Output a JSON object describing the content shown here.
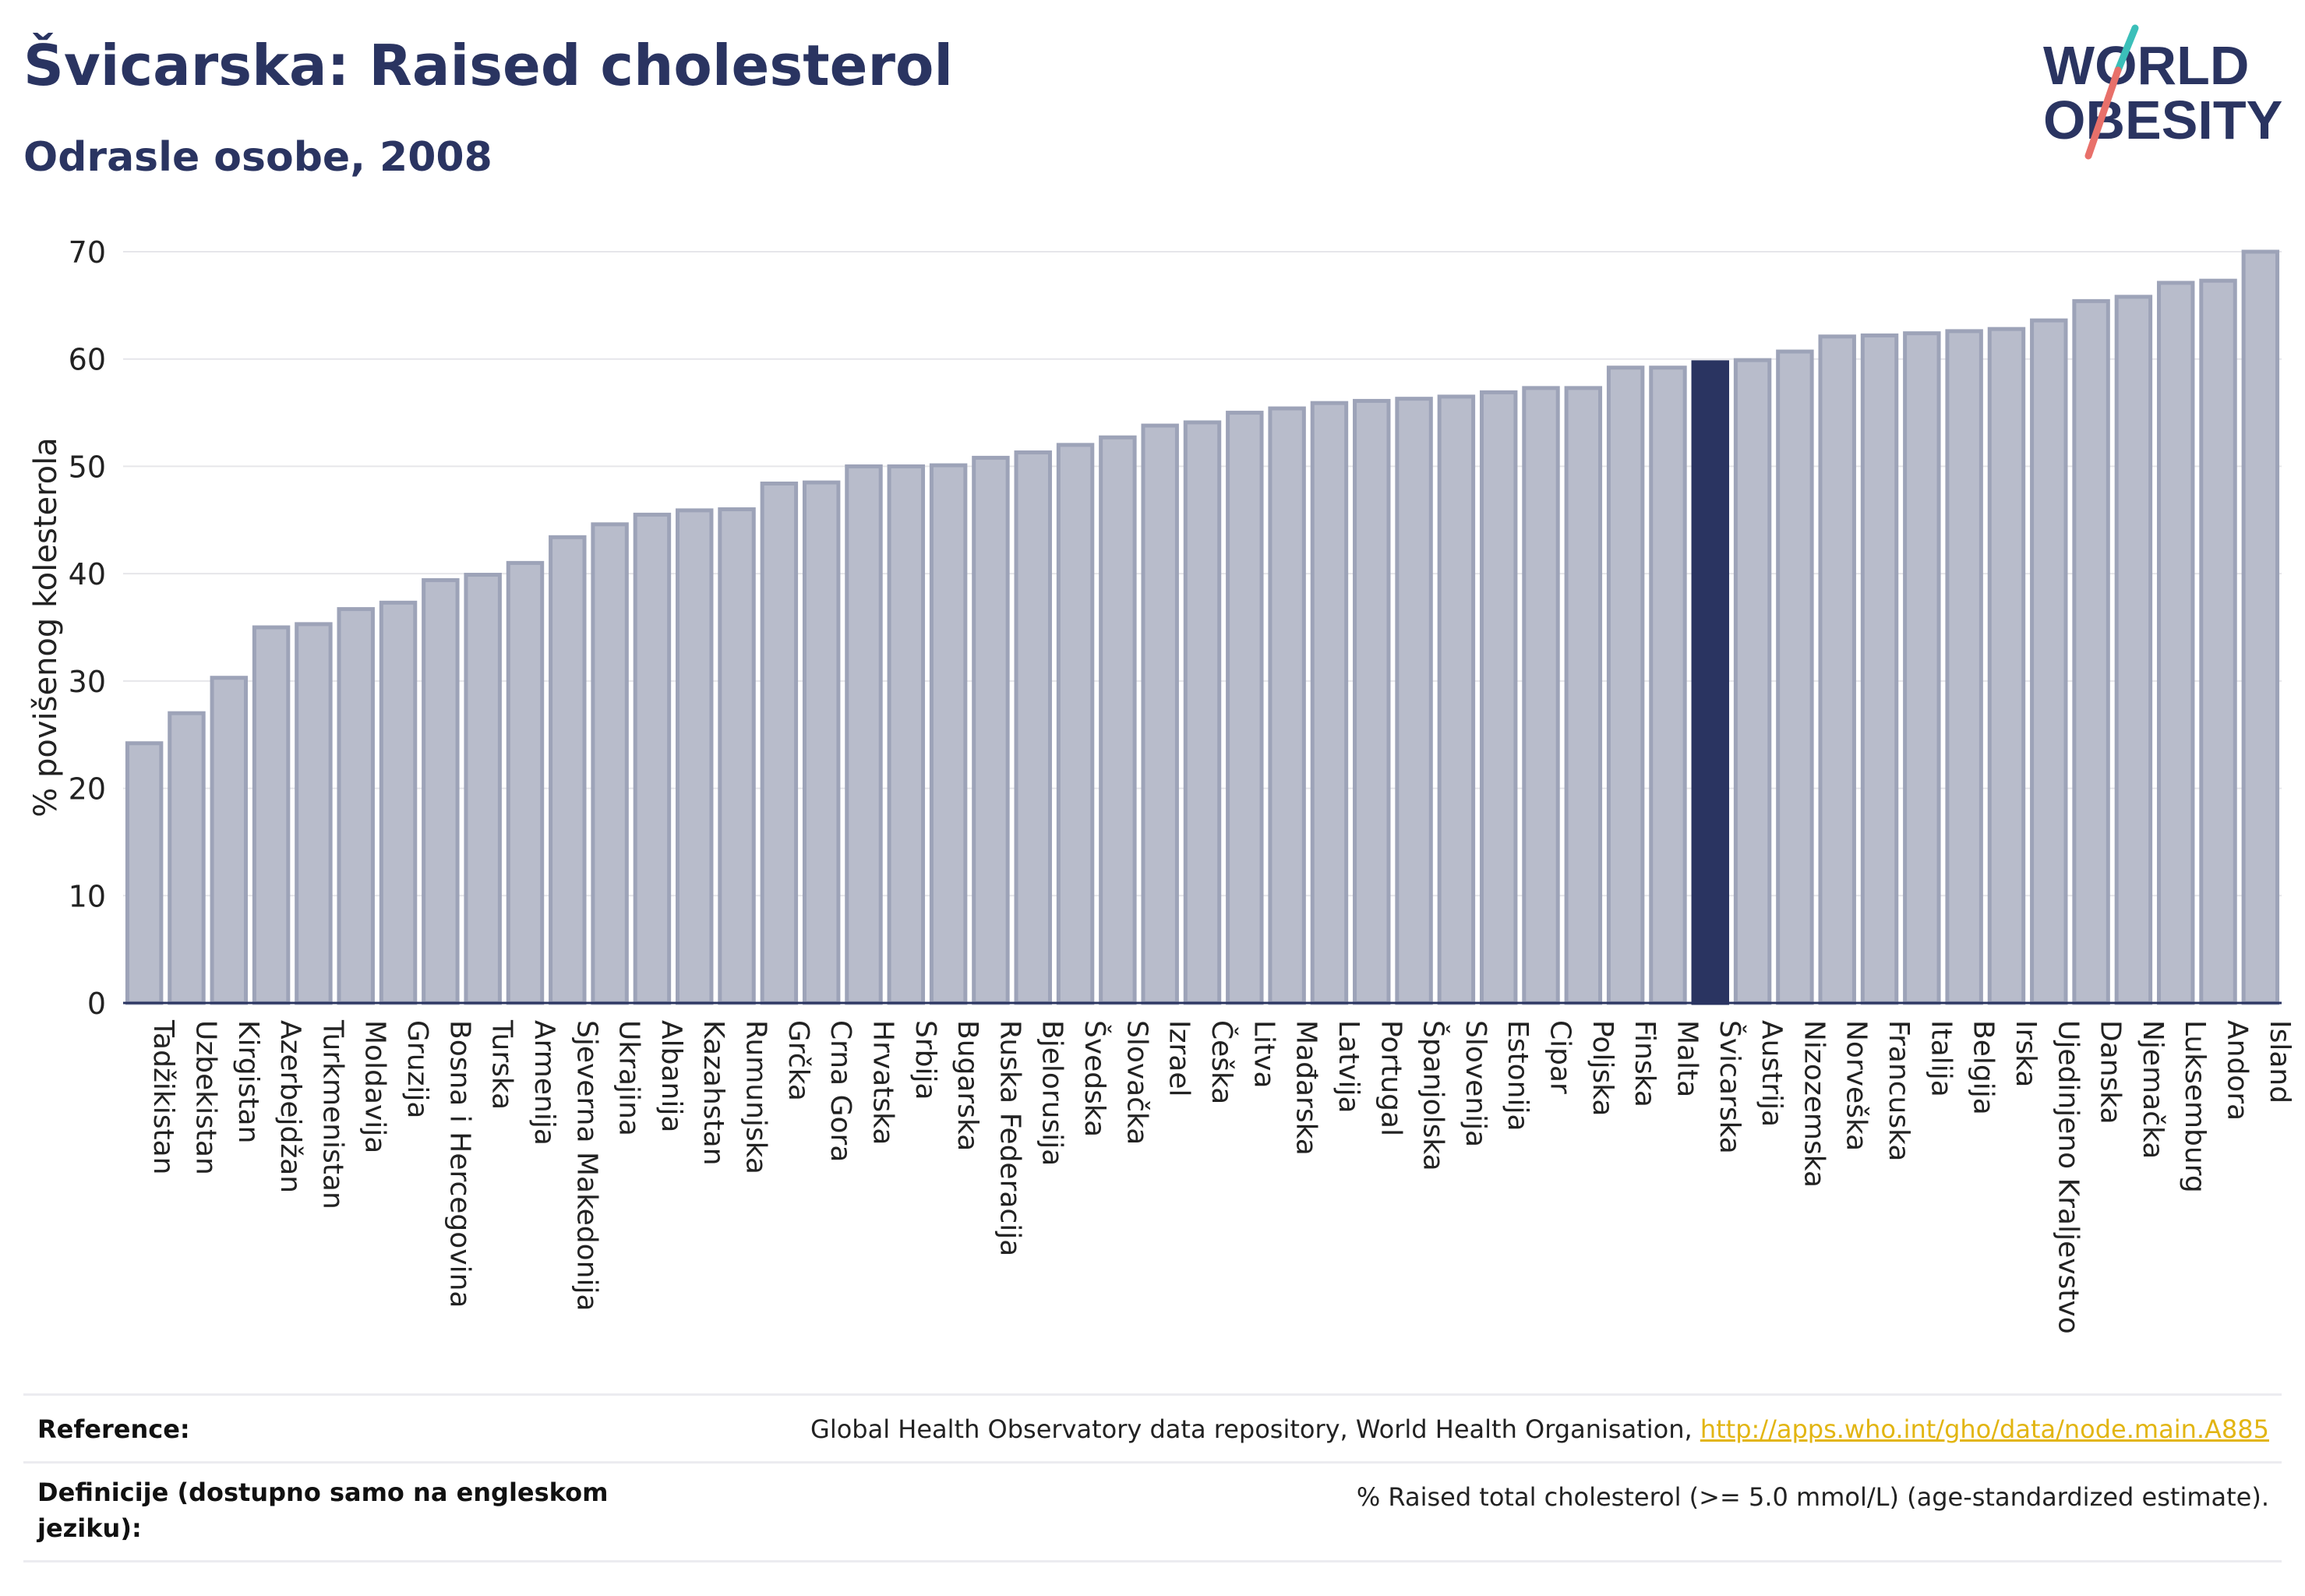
{
  "header": {
    "title": "Švicarska: Raised cholesterol",
    "subtitle": "Odrasle osobe, 2008"
  },
  "logo": {
    "line1": "WORLD",
    "line2": "OBESITY",
    "colors": {
      "text": "#2a3461",
      "slash_teal": "#3bbfb9",
      "slash_red": "#e8706a"
    }
  },
  "colors": {
    "bar": "#b8bccb",
    "bar_border": "#9da3b8",
    "highlight": "#2a3461",
    "grid": "#e6e6ea",
    "axis": "#2a3461"
  },
  "chart_data": {
    "type": "bar",
    "title": "Švicarska: Raised cholesterol",
    "subtitle": "Odrasle osobe, 2008",
    "xlabel": "",
    "ylabel": "% povišenog kolesterola",
    "ylim": [
      0,
      70
    ],
    "yticks": [
      0,
      10,
      20,
      30,
      40,
      50,
      60,
      70
    ],
    "grid": true,
    "highlight": "Švicarska",
    "categories": [
      "Tadžikistan",
      "Uzbekistan",
      "Kirgistan",
      "Azerbejdžan",
      "Turkmenistan",
      "Moldavija",
      "Gruzija",
      "Bosna i Hercegovina",
      "Turska",
      "Armenija",
      "Sjeverna Makedonija",
      "Ukrajina",
      "Albanija",
      "Kazahstan",
      "Rumunjska",
      "Grčka",
      "Crna Gora",
      "Hrvatska",
      "Srbija",
      "Bugarska",
      "Ruska Federacija",
      "Bjelorusija",
      "Švedska",
      "Slovačka",
      "Izrael",
      "Češka",
      "Litva",
      "Mađarska",
      "Latvija",
      "Portugal",
      "Španjolska",
      "Slovenija",
      "Estonija",
      "Cipar",
      "Poljska",
      "Finska",
      "Malta",
      "Švicarska",
      "Austrija",
      "Nizozemska",
      "Norveška",
      "Francuska",
      "Italija",
      "Belgija",
      "Irska",
      "Ujedinjeno Kraljevstvo",
      "Danska",
      "Njemačka",
      "Luksemburg",
      "Andora",
      "Island"
    ],
    "values": [
      24.2,
      27.0,
      30.3,
      35.0,
      35.3,
      36.7,
      37.3,
      39.4,
      39.9,
      41.0,
      43.4,
      44.6,
      45.5,
      45.9,
      46.0,
      48.4,
      48.5,
      50.0,
      50.0,
      50.1,
      50.8,
      51.3,
      52.0,
      52.7,
      53.8,
      54.1,
      55.0,
      55.4,
      55.9,
      56.1,
      56.3,
      56.5,
      56.9,
      57.3,
      57.3,
      59.2,
      59.2,
      59.7,
      59.9,
      60.7,
      62.1,
      62.2,
      62.4,
      62.6,
      62.8,
      63.6,
      65.4,
      65.8,
      67.1,
      67.3,
      70.0
    ]
  },
  "reference": {
    "label": "Reference:",
    "text": "Global Health Observatory data repository, World Health Organisation, ",
    "link": "http://apps.who.int/gho/data/node.main.A885"
  },
  "definition": {
    "label": "Definicije (dostupno samo na engleskom jeziku):",
    "text": "% Raised total cholesterol (>= 5.0 mmol/L) (age-standardized estimate)."
  }
}
